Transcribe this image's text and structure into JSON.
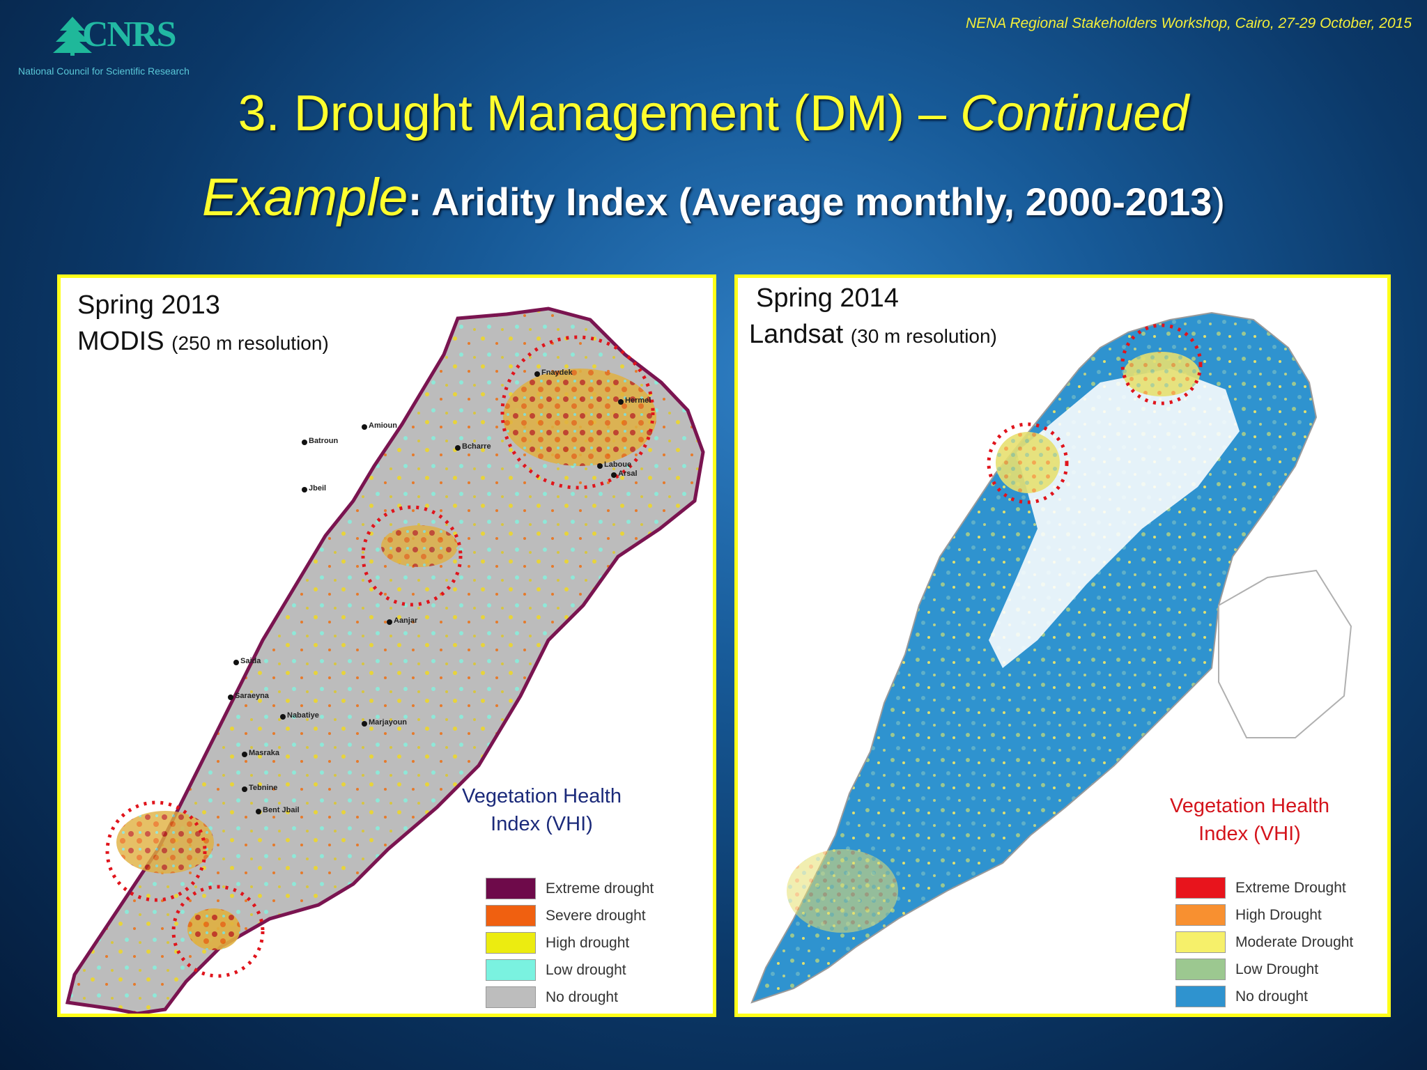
{
  "header": {
    "logo_text": "CNRS",
    "logo_subtitle": "National Council for Scientific Research",
    "workshop": "NENA Regional  Stakeholders Workshop, Cairo, 27-29 October, 2015"
  },
  "title": {
    "main": "3. Drought Management (DM)  – ",
    "continued": "Continued"
  },
  "subtitle": {
    "example": "Example",
    "colon": ":",
    "text": " Aridity Index (Average monthly, 2000-2013",
    "close": ")"
  },
  "left_panel": {
    "season": "Spring 2013",
    "sensor": "MODIS",
    "resolution": "(250 m resolution)",
    "index_line1": "Vegetation Health",
    "index_line2": "Index (VHI)",
    "index_color": "#1b2a7a",
    "legend": [
      {
        "label": "Extreme drought",
        "color": "#6e0a4a"
      },
      {
        "label": "Severe drought",
        "color": "#f06010"
      },
      {
        "label": "High drought",
        "color": "#ecec10"
      },
      {
        "label": "Low drought",
        "color": "#7af2e0"
      },
      {
        "label": "No drought",
        "color": "#bdbdbd"
      }
    ],
    "cities": [
      "Fnaydek",
      "Hermel",
      "Amioun",
      "Batroun",
      "Bcharre",
      "Laboue",
      "Arsal",
      "Jbeil",
      "Aanjar",
      "Saida",
      "Saraeyna",
      "Nabatiye",
      "Marjayoun",
      "Masraka",
      "Tebnine",
      "Bent Jbail"
    ]
  },
  "right_panel": {
    "season": "Spring 2014",
    "sensor": "Landsat",
    "resolution": "(30 m resolution)",
    "index_line1": "Vegetation Health",
    "index_line2": "Index (VHI)",
    "index_color": "#d4141c",
    "legend": [
      {
        "label": "Extreme Drought",
        "color": "#e8141c"
      },
      {
        "label": "High Drought",
        "color": "#f89030"
      },
      {
        "label": "Moderate Drought",
        "color": "#f6f06a"
      },
      {
        "label": "Low Drought",
        "color": "#9cc890"
      },
      {
        "label": "No drought",
        "color": "#2f93cf"
      }
    ]
  }
}
